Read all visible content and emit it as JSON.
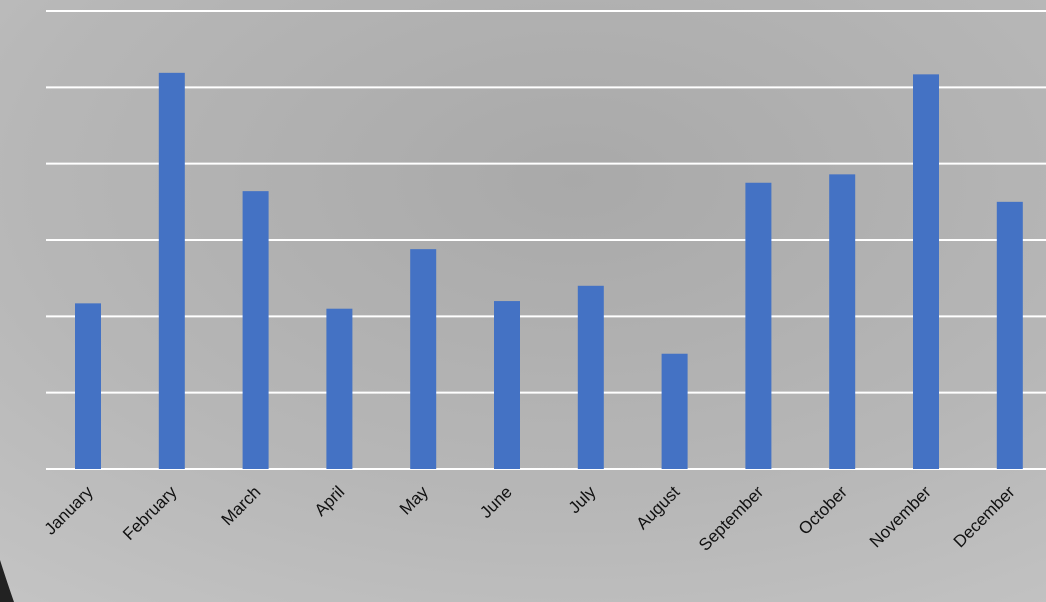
{
  "chart_data": {
    "type": "bar",
    "categories": [
      "January",
      "February",
      "March",
      "April",
      "May",
      "June",
      "July",
      "August",
      "September",
      "October",
      "November",
      "December"
    ],
    "values": [
      2.17,
      5.19,
      3.64,
      2.1,
      2.88,
      2.2,
      2.4,
      1.51,
      3.75,
      3.86,
      5.17,
      3.5
    ],
    "color": "#4472c4",
    "ylim": [
      0,
      6
    ],
    "yticks": [
      0,
      1,
      2,
      3,
      4,
      5,
      6
    ],
    "grid": true,
    "show_tick_labels": false
  }
}
